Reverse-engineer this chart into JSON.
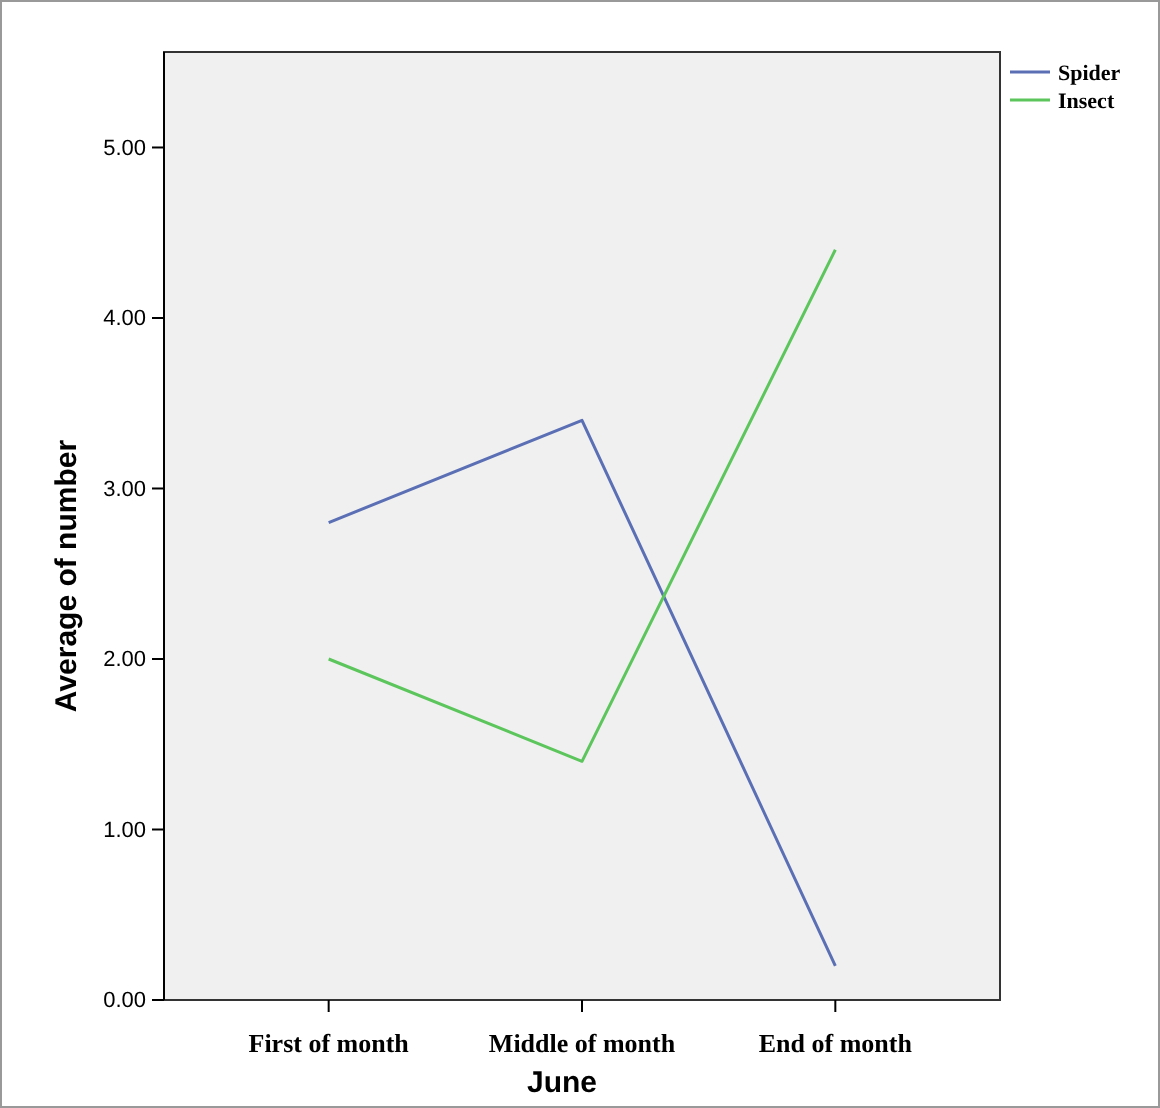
{
  "chart_data": {
    "type": "line",
    "xlabel": "June",
    "ylabel": "Average of number",
    "categories": [
      "First of month",
      "Middle of month",
      "End of month"
    ],
    "series": [
      {
        "name": "Spider",
        "color": "#5b6fb5",
        "values": [
          2.8,
          3.4,
          0.2
        ]
      },
      {
        "name": "Insect",
        "color": "#5cc65c",
        "values": [
          2.0,
          1.4,
          4.4
        ]
      }
    ],
    "ylim": [
      0,
      5.56
    ],
    "yticks": [
      {
        "value": 0,
        "label": "0.00"
      },
      {
        "value": 1,
        "label": "1.00"
      },
      {
        "value": 2,
        "label": "2.00"
      },
      {
        "value": 3,
        "label": "3.00"
      },
      {
        "value": 4,
        "label": "4.00"
      },
      {
        "value": 5,
        "label": "5.00"
      }
    ],
    "legend": "top right",
    "grid": false,
    "marker": "none",
    "line_style": "solid"
  }
}
